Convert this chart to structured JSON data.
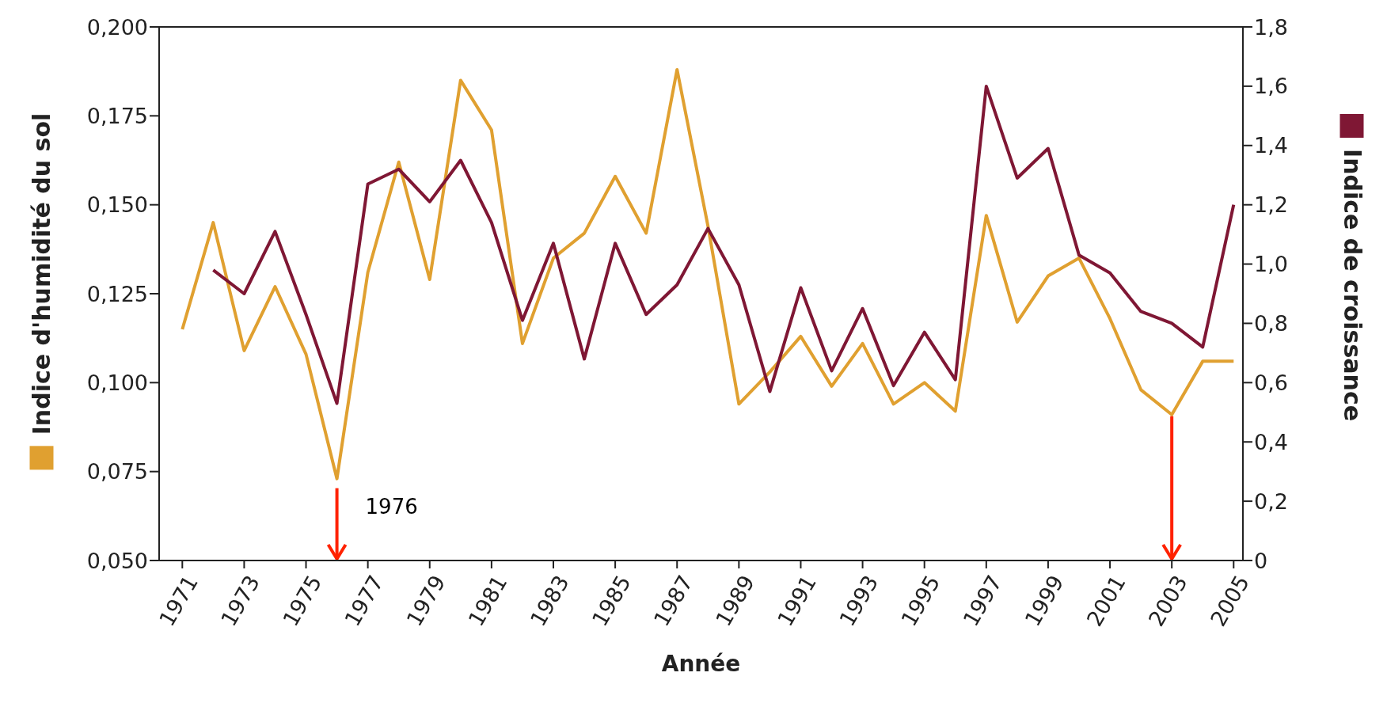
{
  "chart_data": {
    "type": "line",
    "xlabel": "Année",
    "ylabel": "Indice d'humidité du sol",
    "y2label": "Indice de croissance",
    "x": [
      1971,
      1972,
      1973,
      1974,
      1975,
      1976,
      1977,
      1978,
      1979,
      1980,
      1981,
      1982,
      1983,
      1984,
      1985,
      1986,
      1987,
      1988,
      1989,
      1990,
      1991,
      1992,
      1993,
      1994,
      1995,
      1996,
      1997,
      1998,
      1999,
      2000,
      2001,
      2002,
      2003,
      2004,
      2005
    ],
    "series": [
      {
        "color": "#e0a030",
        "values": [
          0.115,
          0.145,
          0.109,
          0.127,
          0.108,
          0.073,
          0.131,
          0.162,
          0.129,
          0.185,
          0.171,
          0.111,
          0.135,
          0.142,
          0.158,
          0.142,
          0.188,
          0.144,
          0.094,
          0.103,
          0.113,
          0.099,
          0.111,
          0.094,
          0.1,
          0.092,
          0.147,
          0.117,
          0.13,
          0.135,
          0.118,
          0.098,
          0.091,
          0.106,
          0.106
        ]
      },
      {
        "color": "#7f1734",
        "axis": "y2",
        "values": [
          null,
          0.98,
          0.9,
          1.11,
          0.83,
          0.53,
          1.27,
          1.32,
          1.21,
          1.35,
          1.14,
          0.81,
          1.07,
          0.68,
          1.07,
          0.83,
          0.93,
          1.12,
          0.93,
          0.57,
          0.92,
          0.64,
          0.85,
          0.59,
          0.77,
          0.61,
          1.6,
          1.29,
          1.39,
          1.03,
          0.97,
          0.84,
          0.8,
          0.72,
          1.2
        ]
      }
    ],
    "xlim": [
      1970.25,
      2005.3
    ],
    "xticks": [
      1971,
      1973,
      1975,
      1977,
      1979,
      1981,
      1983,
      1985,
      1987,
      1989,
      1991,
      1993,
      1995,
      1997,
      1999,
      2001,
      2003,
      2005
    ],
    "ylim": [
      0.05,
      0.2
    ],
    "yticks": [
      {
        "value": 0.05,
        "label": "0,050"
      },
      {
        "value": 0.075,
        "label": "0,075"
      },
      {
        "value": 0.1,
        "label": "0,100"
      },
      {
        "value": 0.125,
        "label": "0,125"
      },
      {
        "value": 0.15,
        "label": "0,150"
      },
      {
        "value": 0.175,
        "label": "0,175"
      },
      {
        "value": 0.2,
        "label": "0,200"
      }
    ],
    "y2lim": [
      0,
      1.8
    ],
    "y2ticks": [
      0,
      {
        "value": 0.2,
        "label": "0,2"
      },
      {
        "value": 0.4,
        "label": "0,4"
      },
      {
        "value": 0.6,
        "label": "0,6"
      },
      {
        "value": 0.8,
        "label": "0,8"
      },
      {
        "value": 1.0,
        "label": "1,0"
      },
      {
        "value": 1.2,
        "label": "1,2"
      },
      {
        "value": 1.4,
        "label": "1,4"
      },
      {
        "value": 1.6,
        "label": "1,6"
      },
      {
        "value": 1.8,
        "label": "1,8"
      }
    ],
    "ref_lines": [
      {
        "axis": "x",
        "value": 1976,
        "label": "1976",
        "color": "#ff2200"
      },
      {
        "axis": "x",
        "value": 2003,
        "color": "#ff2200"
      }
    ],
    "marker": "none",
    "line_style": "solid",
    "grid": false
  }
}
